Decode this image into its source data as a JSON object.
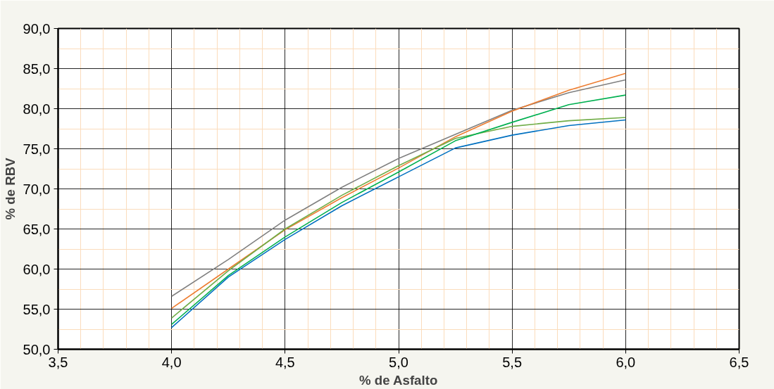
{
  "chart_data": {
    "type": "line",
    "xlabel": "% de Asfalto",
    "ylabel": "% de RBV",
    "x": [
      4.0,
      4.25,
      4.5,
      4.75,
      5.0,
      5.25,
      5.5,
      5.75,
      6.0
    ],
    "series": [
      {
        "color": "#808080",
        "values": [
          56.6,
          61.2,
          66.1,
          70.2,
          73.8,
          76.8,
          79.8,
          82.0,
          83.6
        ]
      },
      {
        "color": "#ed7d31",
        "values": [
          55.1,
          60.0,
          64.9,
          68.9,
          72.6,
          76.5,
          79.7,
          82.3,
          84.4
        ]
      },
      {
        "color": "#70ad47",
        "values": [
          53.9,
          59.8,
          65.0,
          69.2,
          72.9,
          76.3,
          77.8,
          78.5,
          78.9
        ]
      },
      {
        "color": "#00b050",
        "values": [
          53.1,
          59.2,
          64.0,
          68.3,
          72.1,
          76.0,
          78.3,
          80.5,
          81.7
        ]
      },
      {
        "color": "#0070c0",
        "values": [
          52.7,
          59.0,
          63.7,
          67.9,
          71.5,
          75.1,
          76.7,
          77.9,
          78.6
        ]
      }
    ],
    "xlim": [
      3.5,
      6.5
    ],
    "ylim": [
      50,
      90
    ],
    "xticks": [
      {
        "value": 3.5,
        "label": "3,5"
      },
      {
        "value": 3.6,
        "label": null
      },
      {
        "value": 3.7,
        "label": null
      },
      {
        "value": 3.8,
        "label": null
      },
      {
        "value": 3.9,
        "label": null
      },
      {
        "value": 4.0,
        "label": "4,0"
      },
      {
        "value": 4.1,
        "label": null
      },
      {
        "value": 4.2,
        "label": null
      },
      {
        "value": 4.3,
        "label": null
      },
      {
        "value": 4.4,
        "label": null
      },
      {
        "value": 4.5,
        "label": "4,5"
      },
      {
        "value": 4.6,
        "label": null
      },
      {
        "value": 4.7,
        "label": null
      },
      {
        "value": 4.8,
        "label": null
      },
      {
        "value": 4.9,
        "label": null
      },
      {
        "value": 5.0,
        "label": "5,0"
      },
      {
        "value": 5.1,
        "label": null
      },
      {
        "value": 5.2,
        "label": null
      },
      {
        "value": 5.3,
        "label": null
      },
      {
        "value": 5.4,
        "label": null
      },
      {
        "value": 5.5,
        "label": "5,5"
      },
      {
        "value": 5.6,
        "label": null
      },
      {
        "value": 5.7,
        "label": null
      },
      {
        "value": 5.8,
        "label": null
      },
      {
        "value": 5.9,
        "label": null
      },
      {
        "value": 6.0,
        "label": "6,0"
      },
      {
        "value": 6.1,
        "label": null
      },
      {
        "value": 6.2,
        "label": null
      },
      {
        "value": 6.3,
        "label": null
      },
      {
        "value": 6.4,
        "label": null
      },
      {
        "value": 6.5,
        "label": "6,5"
      }
    ],
    "yticks": [
      {
        "value": 50,
        "label": "50,0"
      },
      {
        "value": 52.5,
        "label": null
      },
      {
        "value": 55,
        "label": "55,0"
      },
      {
        "value": 57.5,
        "label": null
      },
      {
        "value": 60,
        "label": "60,0"
      },
      {
        "value": 62.5,
        "label": null
      },
      {
        "value": 65,
        "label": "65,0"
      },
      {
        "value": 67.5,
        "label": null
      },
      {
        "value": 70,
        "label": "70,0"
      },
      {
        "value": 72.5,
        "label": null
      },
      {
        "value": 75,
        "label": "75,0"
      },
      {
        "value": 77.5,
        "label": null
      },
      {
        "value": 80,
        "label": "80,0"
      },
      {
        "value": 82.5,
        "label": null
      },
      {
        "value": 85,
        "label": "85,0"
      },
      {
        "value": 87.5,
        "label": null
      },
      {
        "value": 90,
        "label": "90,0"
      }
    ],
    "grid": true,
    "marker": "none",
    "line_style": "solid"
  }
}
